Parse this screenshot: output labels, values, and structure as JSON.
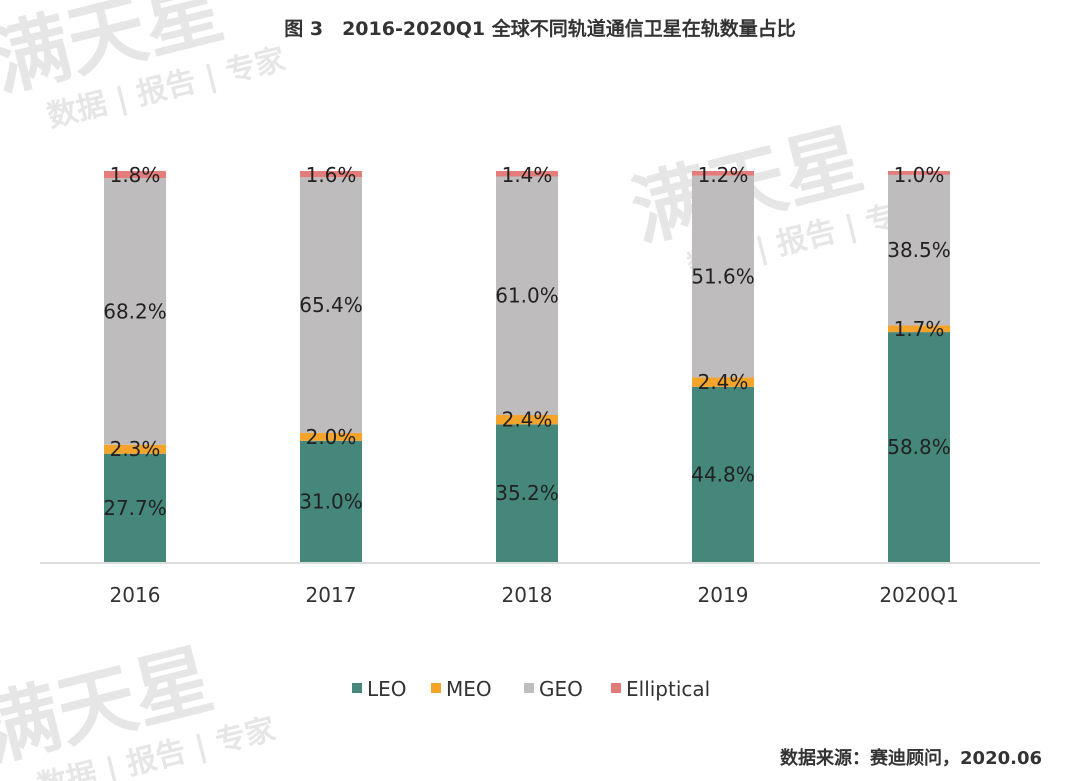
{
  "title": "图 3　2016-2020Q1 全球不同轨道通信卫星在轨数量占比",
  "source": "数据来源：赛迪顾问，2020.06",
  "watermark": {
    "main": "满天星",
    "sub": "数据 | 报告 | 专家"
  },
  "colors": {
    "LEO": "#45877a",
    "MEO": "#f4a42b",
    "GEO": "#bfbcbd",
    "Elliptical": "#e57c7c"
  },
  "chart_data": {
    "type": "bar",
    "stacked": true,
    "categories": [
      "2016",
      "2017",
      "2018",
      "2019",
      "2020Q1"
    ],
    "series": [
      {
        "name": "LEO",
        "values": [
          27.7,
          31.0,
          35.2,
          44.8,
          58.8
        ],
        "labels": [
          "27.7%",
          "31.0%",
          "35.2%",
          "44.8%",
          "58.8%"
        ]
      },
      {
        "name": "MEO",
        "values": [
          2.3,
          2.0,
          2.4,
          2.4,
          1.7
        ],
        "labels": [
          "2.3%",
          "2.0%",
          "2.4%",
          "2.4%",
          "1.7%"
        ]
      },
      {
        "name": "GEO",
        "values": [
          68.2,
          65.4,
          61.0,
          51.6,
          38.5
        ],
        "labels": [
          "68.2%",
          "65.4%",
          "61.0%",
          "51.6%",
          "38.5%"
        ]
      },
      {
        "name": "Elliptical",
        "values": [
          1.8,
          1.6,
          1.4,
          1.2,
          1.0
        ],
        "labels": [
          "1.8%",
          "1.6%",
          "1.4%",
          "1.2%",
          "1.0%"
        ]
      }
    ],
    "ylim": [
      0,
      100
    ],
    "grid": false,
    "legend_position": "bottom"
  }
}
